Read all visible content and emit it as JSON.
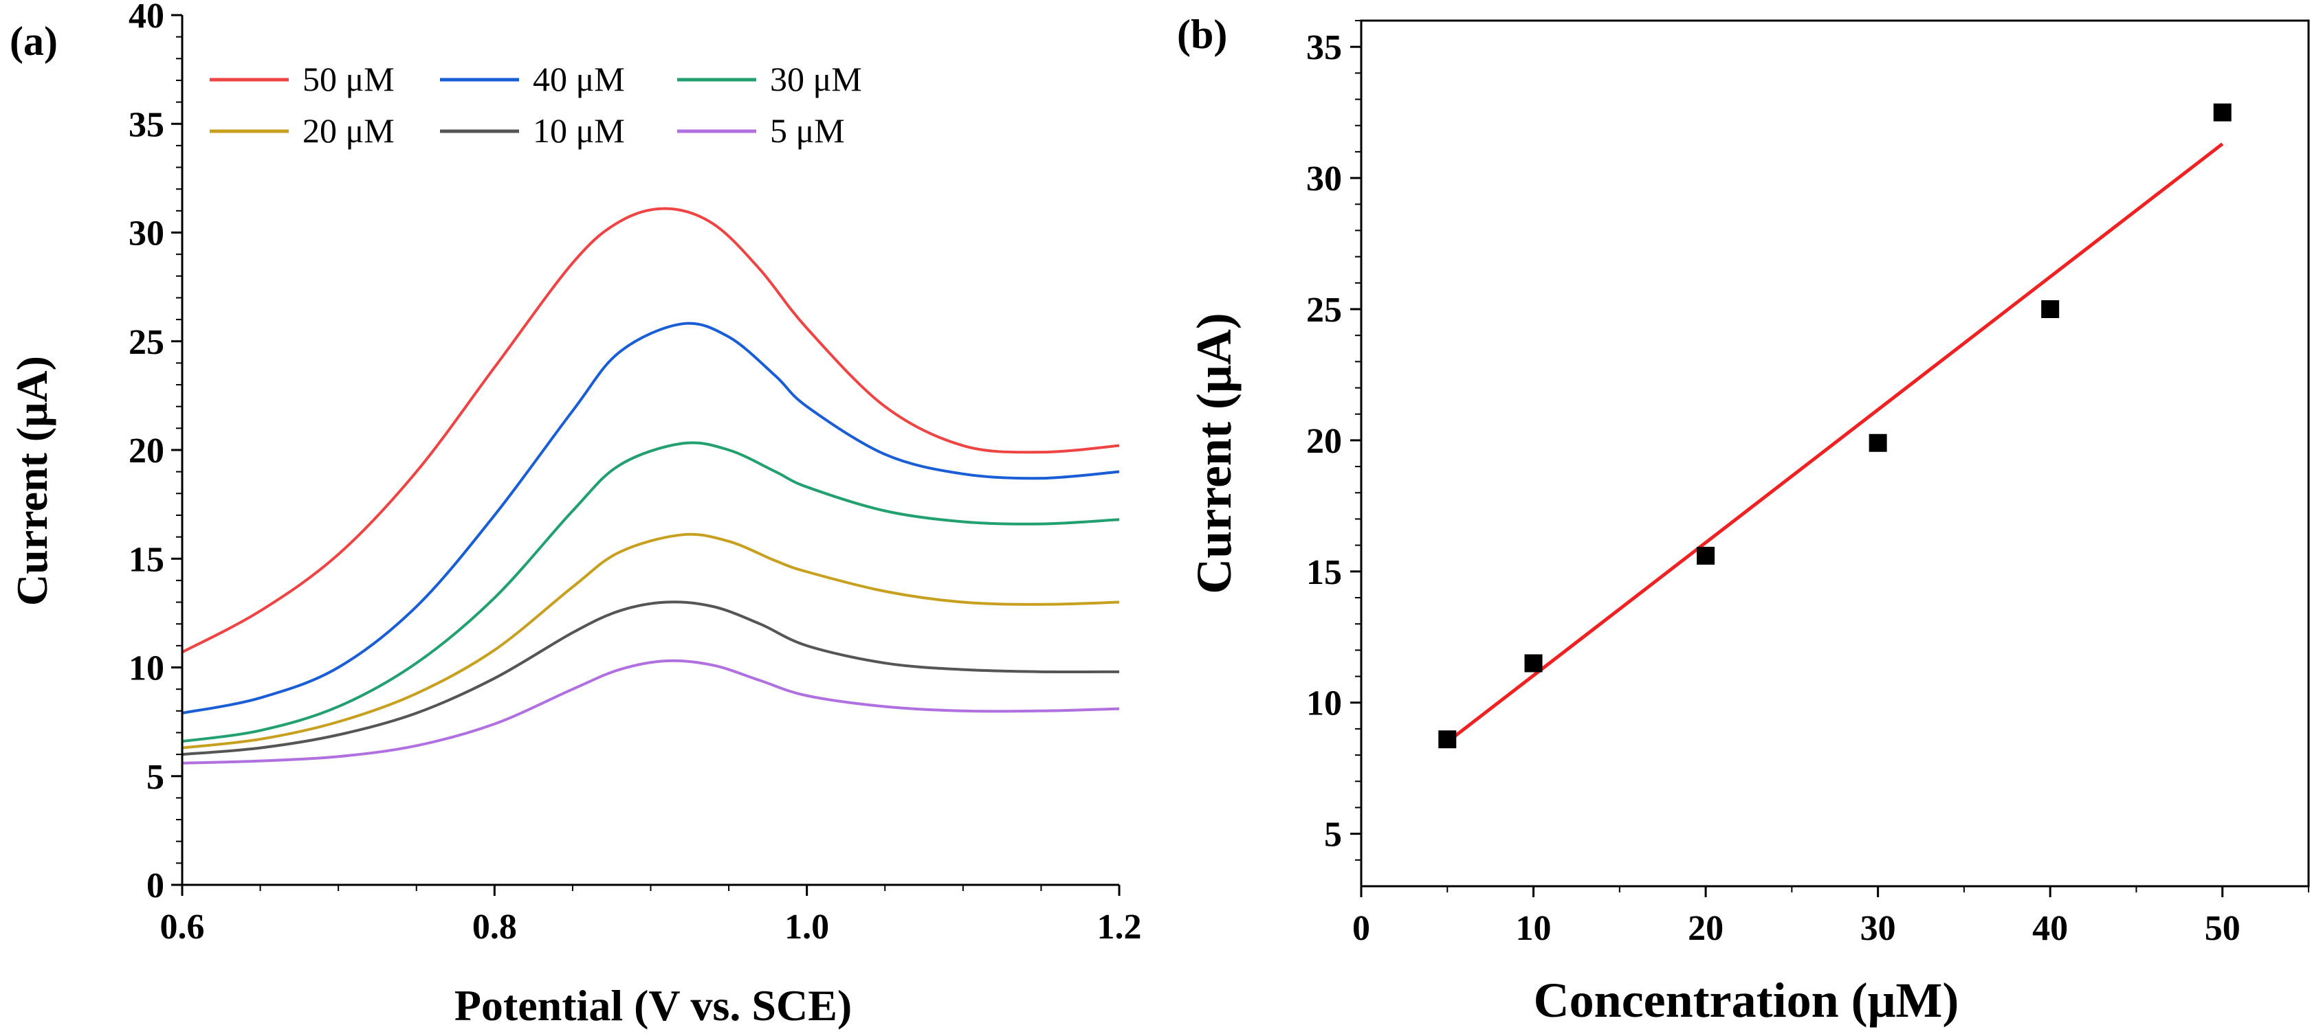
{
  "figure": {
    "panel_a_label": "(a)",
    "panel_b_label": "(b)"
  },
  "chart_data": [
    {
      "type": "line",
      "panel": "(a)",
      "title": "",
      "xlabel": "Potential (V vs.  SCE)",
      "ylabel": "Current (μA)",
      "xlim": [
        0.6,
        1.2
      ],
      "ylim": [
        0,
        40
      ],
      "xticks": [
        0.6,
        0.8,
        1.0,
        1.2
      ],
      "xtick_labels": [
        "0.6",
        "0.8",
        "1.0",
        "1.2"
      ],
      "yticks": [
        0,
        5,
        10,
        15,
        20,
        25,
        30,
        35,
        40
      ],
      "ytick_labels": [
        "0",
        "5",
        "10",
        "15",
        "20",
        "25",
        "30",
        "35",
        "40"
      ],
      "legend_position": "top-left",
      "series": [
        {
          "name": "50 μM",
          "color": "#ee4444",
          "x": [
            0.6,
            0.65,
            0.7,
            0.75,
            0.8,
            0.85,
            0.88,
            0.91,
            0.94,
            0.97,
            1.0,
            1.05,
            1.1,
            1.15,
            1.2
          ],
          "y": [
            10.7,
            12.6,
            15.2,
            19.0,
            23.8,
            28.6,
            30.5,
            31.1,
            30.4,
            28.3,
            25.6,
            22.0,
            20.2,
            19.9,
            20.2
          ]
        },
        {
          "name": "40 μM",
          "color": "#1a5ed6",
          "x": [
            0.6,
            0.65,
            0.7,
            0.75,
            0.8,
            0.85,
            0.88,
            0.92,
            0.95,
            0.98,
            1.0,
            1.05,
            1.1,
            1.15,
            1.2
          ],
          "y": [
            7.9,
            8.6,
            10.0,
            12.8,
            17.0,
            21.8,
            24.5,
            25.8,
            25.2,
            23.4,
            22.0,
            19.8,
            18.9,
            18.7,
            19.0
          ]
        },
        {
          "name": "30 μM",
          "color": "#22a070",
          "x": [
            0.6,
            0.65,
            0.7,
            0.75,
            0.8,
            0.85,
            0.88,
            0.92,
            0.95,
            0.98,
            1.0,
            1.05,
            1.1,
            1.15,
            1.2
          ],
          "y": [
            6.6,
            7.1,
            8.2,
            10.2,
            13.2,
            17.2,
            19.3,
            20.3,
            20.0,
            19.0,
            18.3,
            17.2,
            16.7,
            16.6,
            16.8
          ]
        },
        {
          "name": "20 μM",
          "color": "#c8a020",
          "x": [
            0.6,
            0.65,
            0.7,
            0.75,
            0.8,
            0.85,
            0.88,
            0.92,
            0.95,
            0.98,
            1.0,
            1.05,
            1.1,
            1.15,
            1.2
          ],
          "y": [
            6.3,
            6.7,
            7.5,
            8.8,
            10.8,
            13.7,
            15.3,
            16.1,
            15.8,
            14.9,
            14.4,
            13.5,
            13.0,
            12.9,
            13.0
          ]
        },
        {
          "name": "10 μM",
          "color": "#555555",
          "x": [
            0.6,
            0.65,
            0.7,
            0.75,
            0.8,
            0.85,
            0.88,
            0.91,
            0.94,
            0.97,
            1.0,
            1.05,
            1.1,
            1.15,
            1.2
          ],
          "y": [
            6.0,
            6.3,
            6.9,
            7.9,
            9.5,
            11.6,
            12.6,
            13.0,
            12.8,
            12.0,
            11.0,
            10.2,
            9.9,
            9.8,
            9.8
          ]
        },
        {
          "name": "5  μM",
          "color": "#b070e0",
          "x": [
            0.6,
            0.65,
            0.7,
            0.75,
            0.8,
            0.85,
            0.88,
            0.91,
            0.94,
            0.97,
            1.0,
            1.05,
            1.1,
            1.15,
            1.2
          ],
          "y": [
            5.6,
            5.7,
            5.9,
            6.4,
            7.4,
            9.0,
            9.9,
            10.3,
            10.1,
            9.4,
            8.7,
            8.2,
            8.0,
            8.0,
            8.1
          ]
        }
      ]
    },
    {
      "type": "scatter",
      "panel": "(b)",
      "title": "",
      "xlabel": "Concentration (μM)",
      "ylabel": "Current (μA)",
      "xlim": [
        0,
        55
      ],
      "ylim": [
        3,
        36
      ],
      "xticks": [
        0,
        10,
        20,
        30,
        40,
        50
      ],
      "xtick_labels": [
        "0",
        "10",
        "20",
        "30",
        "40",
        "50"
      ],
      "yticks": [
        5,
        10,
        15,
        20,
        25,
        30,
        35
      ],
      "ytick_labels": [
        "5",
        "10",
        "15",
        "20",
        "25",
        "30",
        "35"
      ],
      "points": {
        "x": [
          5,
          10,
          20,
          30,
          40,
          50
        ],
        "y": [
          8.6,
          11.5,
          15.6,
          19.9,
          25.0,
          32.5
        ],
        "color": "#000000"
      },
      "fit_line": {
        "x": [
          5,
          50
        ],
        "y": [
          8.5,
          31.3
        ],
        "color": "#ee2222"
      }
    }
  ]
}
